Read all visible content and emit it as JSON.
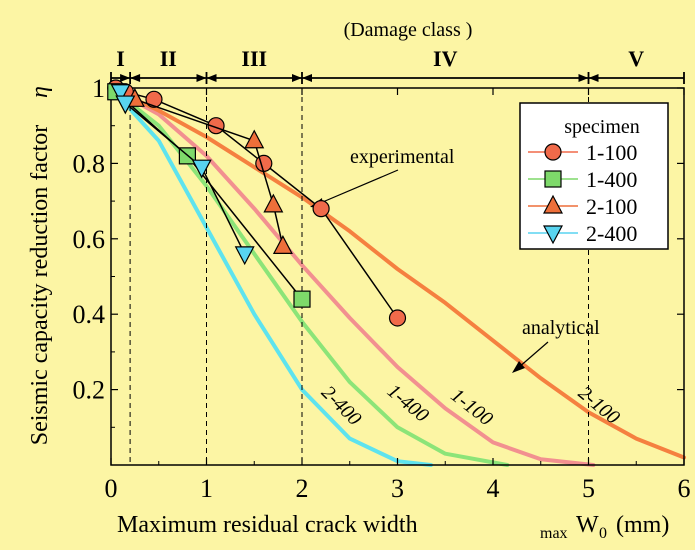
{
  "chart_data": {
    "type": "scatter",
    "top_label": "(Damage class )",
    "damage_classes": [
      {
        "label": "I",
        "from": 0.0,
        "to": 0.2
      },
      {
        "label": "II",
        "from": 0.2,
        "to": 1.0
      },
      {
        "label": "III",
        "from": 1.0,
        "to": 2.0
      },
      {
        "label": "IV",
        "from": 2.0,
        "to": 5.0
      },
      {
        "label": "V",
        "from": 5.0,
        "to": 6.0
      }
    ],
    "class_boundaries": [
      0.2,
      1.0,
      2.0,
      5.0
    ],
    "xlabel": "Maximum residual crack width",
    "xlabel_unit_sub": "max",
    "xlabel_unit_main": "W",
    "xlabel_unit_subscript": "0",
    "xlabel_unit_end": "(mm)",
    "ylabel": "Seismic capacity reduction factor",
    "ylabel_symbol": "η",
    "xlim": [
      0,
      6
    ],
    "ylim": [
      0,
      1.0
    ],
    "xticks": [
      "0",
      "1",
      "2",
      "3",
      "4",
      "5",
      "6"
    ],
    "yticks": [
      {
        "v": 0.2,
        "label": "0.2"
      },
      {
        "v": 0.4,
        "label": "0.4"
      },
      {
        "v": 0.6,
        "label": "0.6"
      },
      {
        "v": 0.8,
        "label": "0.8"
      },
      {
        "v": 1.0,
        "label": "1"
      }
    ],
    "legend_title": "specimen",
    "legend_position": "top-right",
    "series": [
      {
        "name": "1-100",
        "marker": "circle",
        "color": "#f06a4a",
        "x": [
          0.05,
          0.15,
          0.45,
          1.1,
          1.6,
          2.2,
          3.0
        ],
        "y": [
          1.0,
          0.99,
          0.97,
          0.9,
          0.8,
          0.68,
          0.39
        ]
      },
      {
        "name": "1-400",
        "marker": "square",
        "color": "#7ed96a",
        "x": [
          0.05,
          0.8,
          2.0
        ],
        "y": [
          0.99,
          0.82,
          0.44
        ]
      },
      {
        "name": "2-100",
        "marker": "triangle-up",
        "color": "#ee6f3a",
        "x": [
          0.25,
          1.5,
          1.7,
          1.8
        ],
        "y": [
          0.97,
          0.86,
          0.69,
          0.58
        ]
      },
      {
        "name": "2-400",
        "marker": "triangle-down",
        "color": "#58d4f0",
        "x": [
          0.1,
          0.15,
          0.95,
          1.4
        ],
        "y": [
          0.99,
          0.96,
          0.79,
          0.56
        ]
      }
    ],
    "analytical_curves": [
      {
        "name": "2-400",
        "color": "#5ee3ee",
        "x": [
          0,
          0.5,
          1.0,
          1.5,
          2.0,
          2.5,
          3.0,
          3.35
        ],
        "y": [
          1.0,
          0.86,
          0.63,
          0.4,
          0.2,
          0.07,
          0.01,
          0.0
        ]
      },
      {
        "name": "1-400",
        "color": "#8ce478",
        "x": [
          0,
          0.5,
          1.0,
          1.5,
          2.0,
          2.5,
          3.0,
          3.5,
          4.15
        ],
        "y": [
          1.0,
          0.9,
          0.74,
          0.56,
          0.38,
          0.22,
          0.1,
          0.03,
          0.0
        ]
      },
      {
        "name": "1-100",
        "color": "#f29090",
        "x": [
          0,
          0.5,
          1.0,
          1.5,
          2.0,
          2.5,
          3.0,
          3.5,
          4.0,
          4.5,
          5.05
        ],
        "y": [
          1.0,
          0.93,
          0.82,
          0.68,
          0.53,
          0.39,
          0.26,
          0.15,
          0.06,
          0.015,
          0.0
        ]
      },
      {
        "name": "2-100",
        "color": "#f58040",
        "x": [
          0,
          0.5,
          1.0,
          1.5,
          2.0,
          2.5,
          3.0,
          3.5,
          4.0,
          4.5,
          5.0,
          5.5,
          6.0
        ],
        "y": [
          1.0,
          0.94,
          0.87,
          0.79,
          0.71,
          0.62,
          0.52,
          0.43,
          0.33,
          0.23,
          0.14,
          0.07,
          0.02
        ]
      }
    ],
    "annotations": {
      "experimental": "experimental",
      "analytical": "analytical"
    }
  }
}
